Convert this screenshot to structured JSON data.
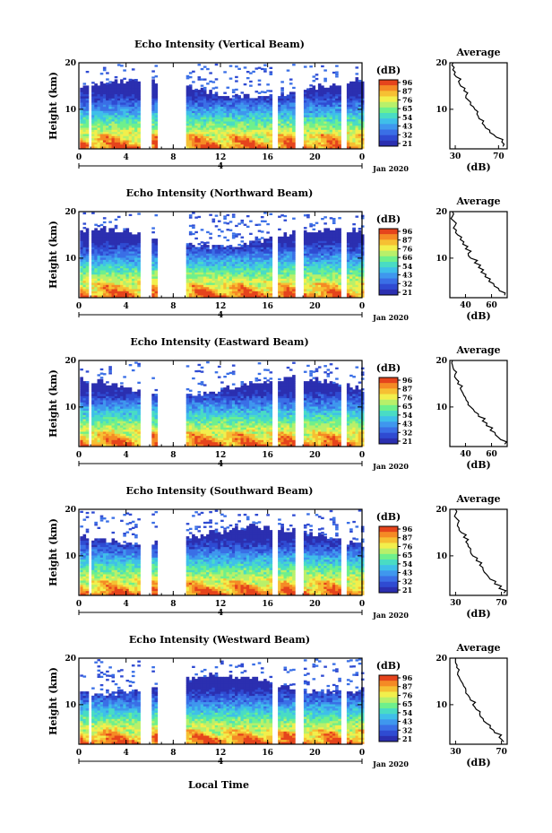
{
  "colors": {
    "palette": [
      "#2b2fb0",
      "#2f4bd2",
      "#3a6fe6",
      "#3f97ee",
      "#3fbfe9",
      "#49dcc4",
      "#6ef08c",
      "#b8f06a",
      "#f2ef4c",
      "#f6c033",
      "#f58a25",
      "#e5441c"
    ],
    "trace": "#000000"
  },
  "footer": {
    "xlabel": "Local Time"
  },
  "chart_data": [
    {
      "type": "heatmap",
      "title": "Echo Intensity (Vertical Beam)",
      "ylabel": "Height (km)",
      "yticks": [
        "20",
        "10"
      ],
      "xticks": [
        "0",
        "4",
        "8",
        "12",
        "16",
        "20",
        "0"
      ],
      "day_label": "4",
      "date_label": "Jan 2020",
      "xlim": [
        0,
        24
      ],
      "ylim": [
        1.5,
        20
      ],
      "gaps_hours": [
        [
          0.6,
          0.9
        ],
        [
          5.0,
          6.1
        ],
        [
          6.6,
          8.9
        ],
        [
          16.2,
          16.7
        ],
        [
          18.1,
          18.9
        ],
        [
          22.1,
          22.6
        ]
      ],
      "colorbar": {
        "unit": "(dB)",
        "labels": [
          "96",
          "87",
          "76",
          "65",
          "54",
          "43",
          "32",
          "21"
        ]
      },
      "profile": {
        "title": "Average",
        "xlabel": "(dB)",
        "xticks": [
          "30",
          "70"
        ],
        "yticks": [
          "20",
          "10"
        ],
        "xlim": [
          25,
          78
        ],
        "heights": [
          2,
          3,
          4,
          5,
          6,
          7,
          8,
          9,
          10,
          11,
          12,
          13,
          14,
          15,
          16,
          17,
          18,
          19,
          20
        ],
        "values": [
          74,
          73,
          68,
          62,
          58,
          55,
          52,
          50,
          48,
          44,
          42,
          40,
          38,
          35,
          33,
          31,
          30,
          29,
          28
        ]
      }
    },
    {
      "type": "heatmap",
      "title": "Echo Intensity (Northward Beam)",
      "ylabel": "Height (km)",
      "yticks": [
        "20",
        "10"
      ],
      "xticks": [
        "0",
        "4",
        "8",
        "12",
        "16",
        "20",
        "0"
      ],
      "day_label": "4",
      "date_label": "Jan 2020",
      "xlim": [
        0,
        24
      ],
      "ylim": [
        1.5,
        20
      ],
      "gaps_hours": [
        [
          0.6,
          0.9
        ],
        [
          5.0,
          6.1
        ],
        [
          6.6,
          8.9
        ],
        [
          16.2,
          16.7
        ],
        [
          18.1,
          18.9
        ],
        [
          22.1,
          22.6
        ]
      ],
      "colorbar": {
        "unit": "(dB)",
        "labels": [
          "96",
          "87",
          "76",
          "66",
          "54",
          "43",
          "32",
          "21"
        ]
      },
      "profile": {
        "title": "Average",
        "xlabel": "(dB)",
        "xticks": [
          "40",
          "60"
        ],
        "yticks": [
          "20",
          "10"
        ],
        "xlim": [
          28,
          72
        ],
        "heights": [
          2,
          3,
          4,
          5,
          6,
          7,
          8,
          9,
          10,
          11,
          12,
          13,
          14,
          15,
          16,
          17,
          18,
          19,
          20
        ],
        "values": [
          70,
          66,
          62,
          58,
          55,
          52,
          50,
          47,
          44,
          42,
          40,
          38,
          36,
          34,
          33,
          32,
          31,
          30,
          30
        ]
      }
    },
    {
      "type": "heatmap",
      "title": "Echo Intensity (Eastward Beam)",
      "ylabel": "Height (km)",
      "yticks": [
        "20",
        "10"
      ],
      "xticks": [
        "0",
        "4",
        "8",
        "12",
        "16",
        "20",
        "0"
      ],
      "day_label": "4",
      "date_label": "Jan 2020",
      "xlim": [
        0,
        24
      ],
      "ylim": [
        1.5,
        20
      ],
      "gaps_hours": [
        [
          0.6,
          0.9
        ],
        [
          5.0,
          6.1
        ],
        [
          6.6,
          8.9
        ],
        [
          16.2,
          16.7
        ],
        [
          18.1,
          18.9
        ],
        [
          22.1,
          22.6
        ]
      ],
      "colorbar": {
        "unit": "(dB)",
        "labels": [
          "96",
          "87",
          "76",
          "65",
          "54",
          "43",
          "32",
          "21"
        ]
      },
      "profile": {
        "title": "Average",
        "xlabel": "(dB)",
        "xticks": [
          "40",
          "60"
        ],
        "yticks": [
          "20",
          "10"
        ],
        "xlim": [
          28,
          72
        ],
        "heights": [
          2,
          3,
          4,
          5,
          6,
          7,
          8,
          9,
          10,
          11,
          12,
          13,
          14,
          15,
          16,
          17,
          18,
          19,
          20
        ],
        "values": [
          70,
          67,
          63,
          59,
          56,
          53,
          50,
          47,
          44,
          42,
          40,
          38,
          36,
          34,
          33,
          32,
          31,
          30,
          30
        ]
      }
    },
    {
      "type": "heatmap",
      "title": "Echo Intensity (Southward Beam)",
      "ylabel": "Height (km)",
      "yticks": [
        "20",
        "10"
      ],
      "xticks": [
        "0",
        "4",
        "8",
        "12",
        "16",
        "20",
        "0"
      ],
      "day_label": "4",
      "date_label": "Jan 2020",
      "xlim": [
        0,
        24
      ],
      "ylim": [
        1.5,
        20
      ],
      "gaps_hours": [
        [
          0.6,
          0.9
        ],
        [
          5.0,
          6.1
        ],
        [
          6.6,
          8.9
        ],
        [
          16.2,
          16.7
        ],
        [
          18.1,
          18.9
        ],
        [
          22.1,
          22.6
        ]
      ],
      "colorbar": {
        "unit": "(dB)",
        "labels": [
          "96",
          "87",
          "76",
          "65",
          "54",
          "43",
          "32",
          "21"
        ]
      },
      "profile": {
        "title": "Average",
        "xlabel": "(dB)",
        "xticks": [
          "30",
          "70"
        ],
        "yticks": [
          "20",
          "10"
        ],
        "xlim": [
          25,
          75
        ],
        "heights": [
          2,
          3,
          4,
          5,
          6,
          7,
          8,
          9,
          10,
          11,
          12,
          13,
          14,
          15,
          16,
          17,
          18,
          19,
          20
        ],
        "values": [
          72,
          68,
          64,
          60,
          57,
          54,
          51,
          48,
          45,
          43,
          41,
          39,
          37,
          35,
          33,
          32,
          31,
          30,
          30
        ]
      }
    },
    {
      "type": "heatmap",
      "title": "Echo Intensity (Westward Beam)",
      "ylabel": "Height (km)",
      "yticks": [
        "20",
        "10"
      ],
      "xticks": [
        "0",
        "4",
        "8",
        "12",
        "16",
        "20",
        "0"
      ],
      "day_label": "4",
      "date_label": "Jan 2020",
      "xlim": [
        0,
        24
      ],
      "ylim": [
        1.5,
        20
      ],
      "gaps_hours": [
        [
          0.6,
          0.9
        ],
        [
          5.0,
          6.1
        ],
        [
          6.6,
          8.9
        ],
        [
          16.2,
          16.7
        ],
        [
          18.1,
          18.9
        ],
        [
          22.1,
          22.6
        ]
      ],
      "colorbar": {
        "unit": "(dB)",
        "labels": [
          "96",
          "87",
          "76",
          "65",
          "54",
          "43",
          "32",
          "21"
        ]
      },
      "profile": {
        "title": "Average",
        "xlabel": "(dB)",
        "xticks": [
          "30",
          "70"
        ],
        "yticks": [
          "20",
          "10"
        ],
        "xlim": [
          25,
          75
        ],
        "heights": [
          2,
          3,
          4,
          5,
          6,
          7,
          8,
          9,
          10,
          11,
          12,
          13,
          14,
          15,
          16,
          17,
          18,
          19,
          20
        ],
        "values": [
          72,
          68,
          64,
          60,
          57,
          54,
          51,
          48,
          45,
          43,
          41,
          39,
          37,
          35,
          33,
          32,
          31,
          30,
          30
        ]
      }
    }
  ]
}
